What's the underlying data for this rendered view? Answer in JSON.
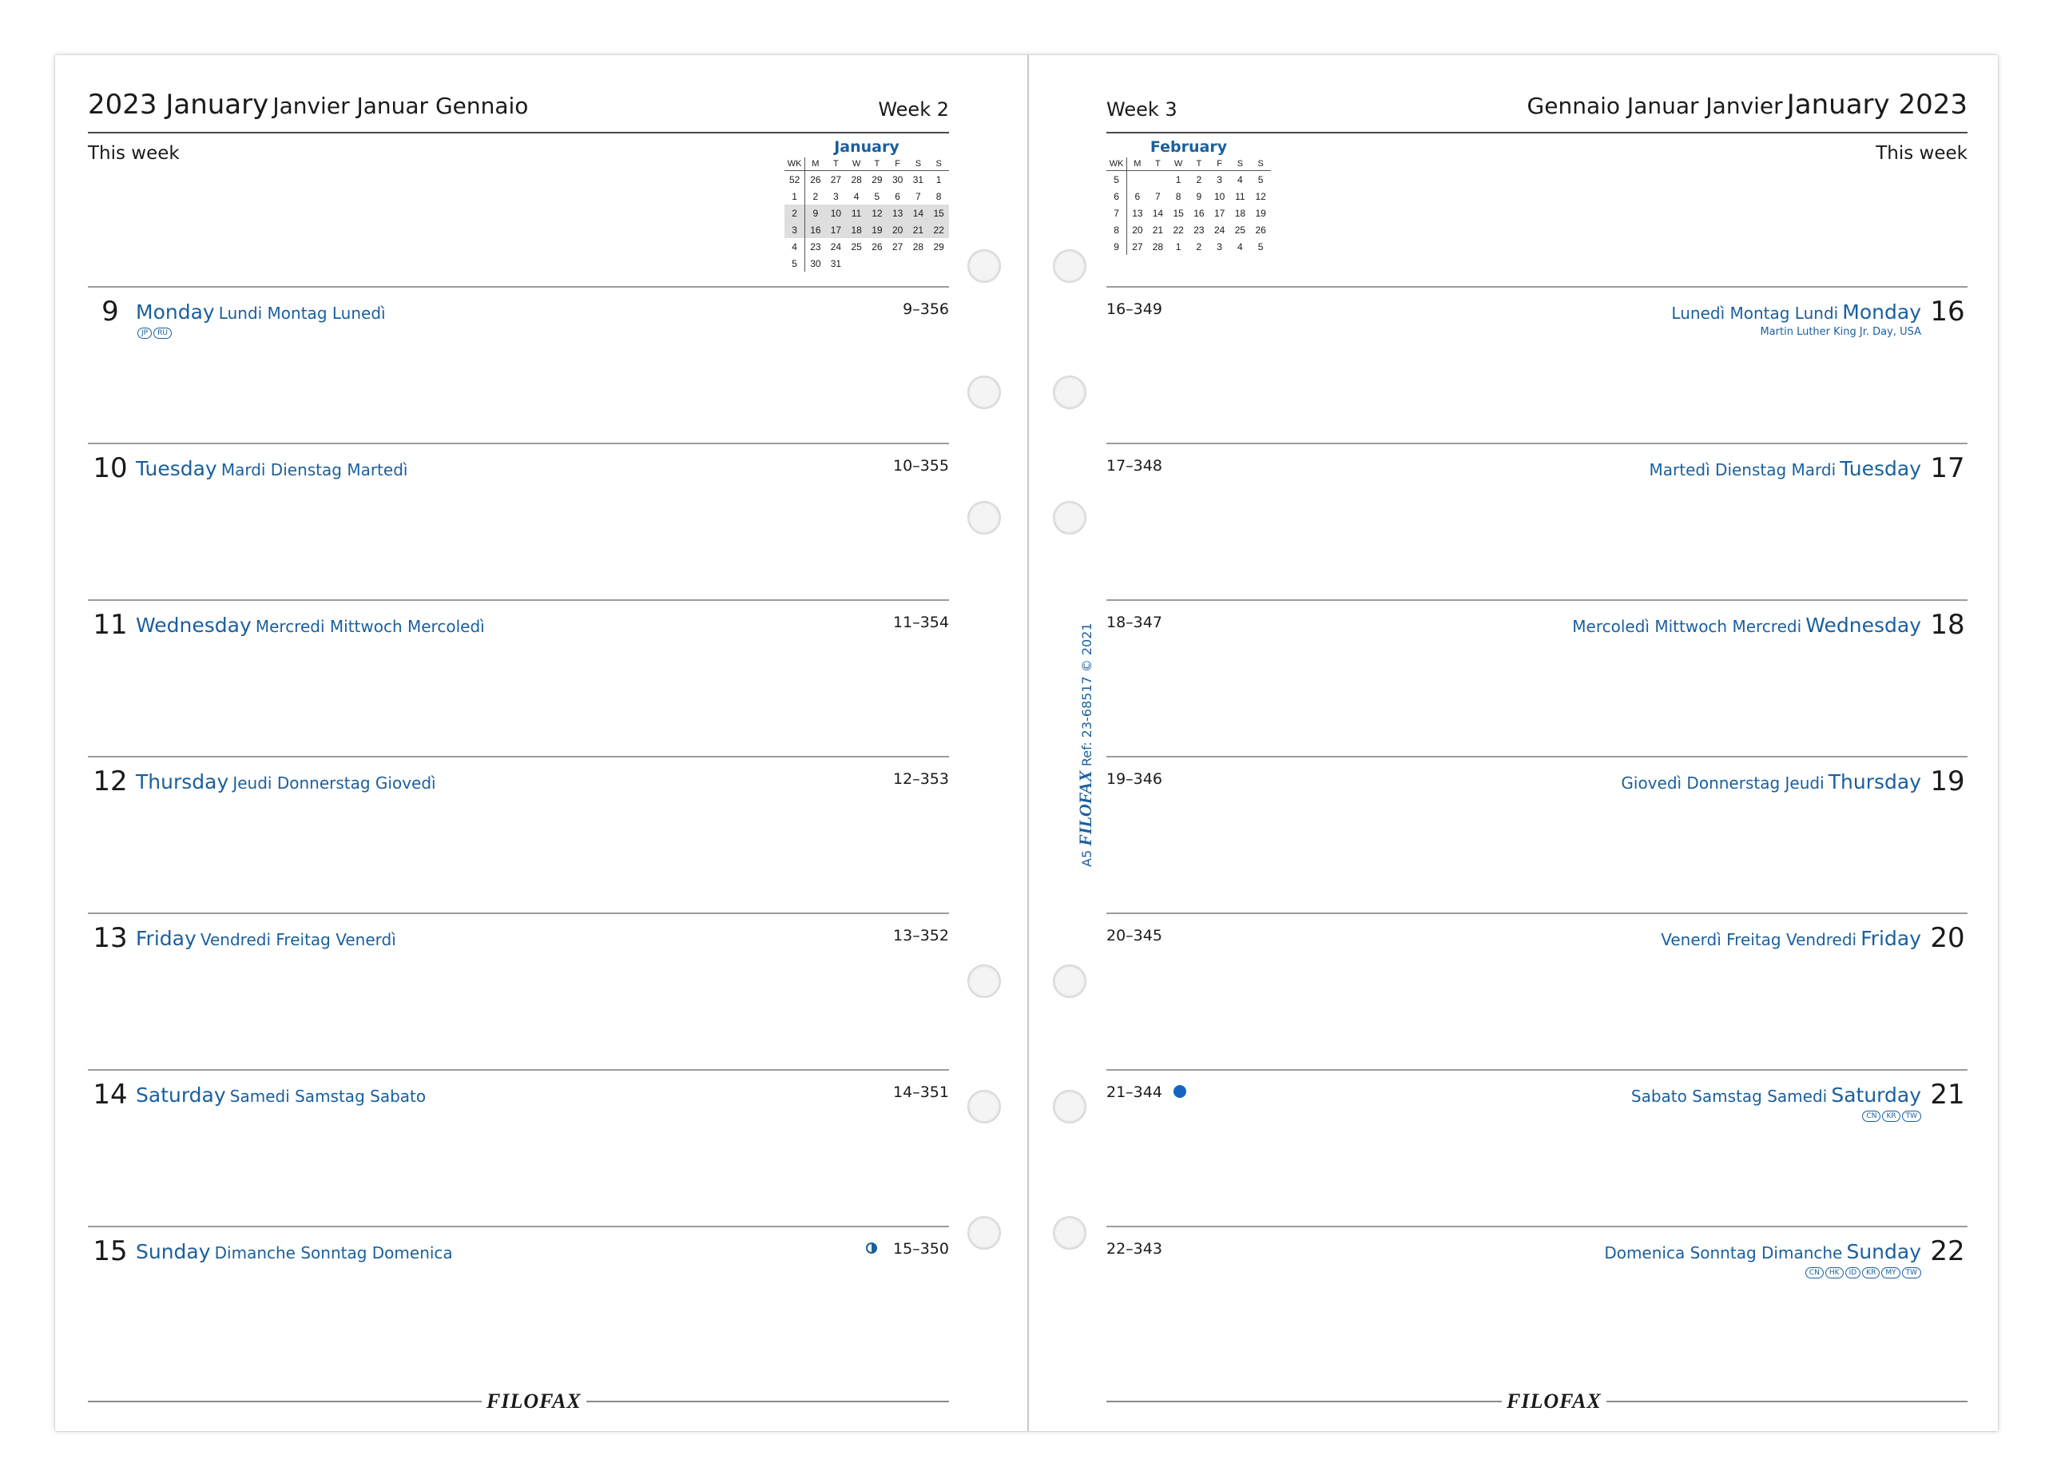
{
  "left": {
    "title_big": "2023 January",
    "title_small": "Janvier Januar Gennaio",
    "week": "Week 2",
    "this_week": "This week",
    "mini_cal": {
      "month": "January",
      "headers": [
        "WK",
        "M",
        "T",
        "W",
        "T",
        "F",
        "S",
        "S"
      ],
      "rows": [
        [
          "52",
          "26",
          "27",
          "28",
          "29",
          "30",
          "31",
          "1"
        ],
        [
          "1",
          "2",
          "3",
          "4",
          "5",
          "6",
          "7",
          "8"
        ],
        [
          "2",
          "9",
          "10",
          "11",
          "12",
          "13",
          "14",
          "15"
        ],
        [
          "3",
          "16",
          "17",
          "18",
          "19",
          "20",
          "21",
          "22"
        ],
        [
          "4",
          "23",
          "24",
          "25",
          "26",
          "27",
          "28",
          "29"
        ],
        [
          "5",
          "30",
          "31",
          "",
          "",
          "",
          "",
          ""
        ]
      ]
    },
    "days": [
      {
        "num": "9",
        "primary": "Monday",
        "secondary": "Lundi Montag Lunedì",
        "count": "9–356",
        "badges": [
          "JP",
          "RU"
        ]
      },
      {
        "num": "10",
        "primary": "Tuesday",
        "secondary": "Mardi Dienstag Martedì",
        "count": "10–355"
      },
      {
        "num": "11",
        "primary": "Wednesday",
        "secondary": "Mercredi Mittwoch Mercoledì",
        "count": "11–354"
      },
      {
        "num": "12",
        "primary": "Thursday",
        "secondary": "Jeudi Donnerstag Giovedì",
        "count": "12–353"
      },
      {
        "num": "13",
        "primary": "Friday",
        "secondary": "Vendredi Freitag Venerdì",
        "count": "13–352"
      },
      {
        "num": "14",
        "primary": "Saturday",
        "secondary": "Samedi Samstag Sabato",
        "count": "14–351"
      },
      {
        "num": "15",
        "primary": "Sunday",
        "secondary": "Dimanche Sonntag Domenica",
        "count": "15–350",
        "moon": "first-quarter-moon-icon"
      }
    ],
    "brand": "FILOFAX"
  },
  "right": {
    "title_small": "Gennaio Januar Janvier",
    "title_big": "January 2023",
    "week": "Week 3",
    "this_week": "This week",
    "mini_cal": {
      "month": "February",
      "headers": [
        "WK",
        "M",
        "T",
        "W",
        "T",
        "F",
        "S",
        "S"
      ],
      "rows": [
        [
          "5",
          "",
          "",
          "1",
          "2",
          "3",
          "4",
          "5"
        ],
        [
          "6",
          "6",
          "7",
          "8",
          "9",
          "10",
          "11",
          "12"
        ],
        [
          "7",
          "13",
          "14",
          "15",
          "16",
          "17",
          "18",
          "19"
        ],
        [
          "8",
          "20",
          "21",
          "22",
          "23",
          "24",
          "25",
          "26"
        ],
        [
          "9",
          "27",
          "28",
          "1",
          "2",
          "3",
          "4",
          "5"
        ]
      ]
    },
    "days": [
      {
        "num": "16",
        "primary": "Monday",
        "secondary": "Lunedì Montag Lundi",
        "count": "16–349",
        "note": "Martin Luther King Jr. Day, USA"
      },
      {
        "num": "17",
        "primary": "Tuesday",
        "secondary": "Martedì Dienstag Mardi",
        "count": "17–348"
      },
      {
        "num": "18",
        "primary": "Wednesday",
        "secondary": "Mercoledì Mittwoch Mercredi",
        "count": "18–347"
      },
      {
        "num": "19",
        "primary": "Thursday",
        "secondary": "Giovedì Donnerstag Jeudi",
        "count": "19–346"
      },
      {
        "num": "20",
        "primary": "Friday",
        "secondary": "Venerdì Freitag Vendredi",
        "count": "20–345"
      },
      {
        "num": "21",
        "primary": "Saturday",
        "secondary": "Sabato Samstag Samedi",
        "count": "21–344",
        "badges": [
          "CN",
          "KR",
          "TW"
        ],
        "dot": "new-moon-icon"
      },
      {
        "num": "22",
        "primary": "Sunday",
        "secondary": "Domenica Sonntag Dimanche",
        "count": "22–343",
        "badges": [
          "CN",
          "HK",
          "ID",
          "KR",
          "MY",
          "TW"
        ]
      }
    ],
    "brand": "FILOFAX"
  },
  "spine": {
    "size": "A5",
    "brand": "FILOFAX",
    "ref": "Ref: 23-68517",
    "copyright": "© 2021"
  },
  "colors": {
    "accent": "#1a5f9e",
    "text": "#1a1a1a",
    "rule": "#9c9c9c"
  }
}
